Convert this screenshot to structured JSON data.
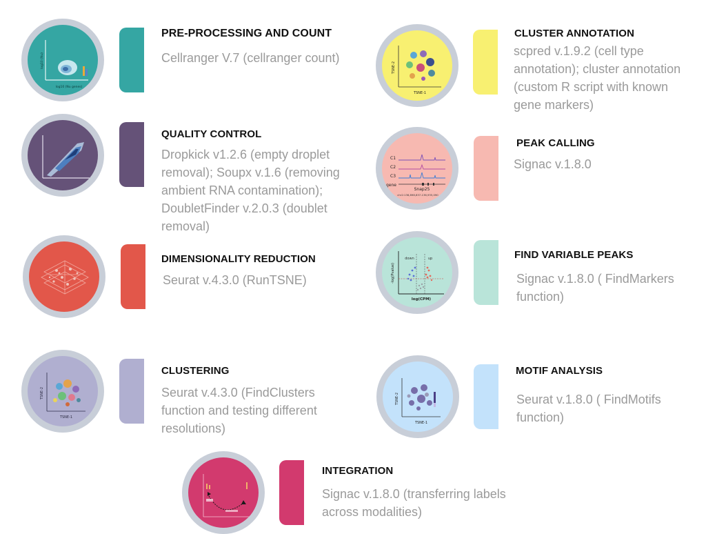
{
  "steps": [
    {
      "title": "PRE-PROCESSING AND COUNT",
      "description": "Cellranger V.7 (cellranger count)",
      "color": "#35a6a3",
      "icon": "density-plot-icon",
      "icon_labels": {
        "xlabel": "log10 (Nu genes)",
        "ylabel": "log10 (Nu)"
      }
    },
    {
      "title": "QUALITY CONTROL",
      "description": "Dropkick v1.2.6 (empty droplet removal); Soupx v.1.6 (removing ambient RNA contamination); DoubletFinder v.2.0.3 (doublet removal)",
      "color": "#655278",
      "icon": "scatter-density-icon"
    },
    {
      "title": "DIMENSIONALITY REDUCTION",
      "description": "Seurat v.4.3.0 (RunTSNE)",
      "color": "#e2574a",
      "icon": "3d-reduction-icon"
    },
    {
      "title": "CLUSTERING",
      "description": "Seurat v.4.3.0 (FindClusters function and testing different resolutions)",
      "color": "#b0afd0",
      "icon": "tsne-cluster-icon",
      "icon_labels": {
        "xlabel": "TSNE-1",
        "ylabel": "TSNE-2"
      }
    },
    {
      "title": "CLUSTER ANNOTATION",
      "description": "scpred v.1.9.2 (cell type annotation); cluster annotation (custom R script with known gene markers)",
      "color": "#f8f071",
      "icon": "annotated-tsne-icon",
      "icon_labels": {
        "xlabel": "TSNE-1",
        "ylabel": "TSNE-2"
      }
    },
    {
      "title": "PEAK CALLING",
      "description": "Signac v.1.8.0",
      "color": "#f7b9b1",
      "icon": "peak-track-icon",
      "icon_labels": {
        "tracks": [
          "C1",
          "C2",
          "C3"
        ],
        "gene_row": "gene",
        "gene_name": "Snap25",
        "locus": "chr2:136,898,837-136,935,090"
      }
    },
    {
      "title": "FIND VARIABLE PEAKS",
      "description": "Signac v.1.8.0 ( FindMarkers function)",
      "color": "#b9e4d9",
      "icon": "volcano-plot-icon",
      "icon_labels": {
        "xlabel": "log(CPM)",
        "ylabel": "-log(Pvalue)",
        "down": "down",
        "up": "up"
      }
    },
    {
      "title": "MOTIF ANALYSIS",
      "description": "Seurat v.1.8.0 ( FindMotifs function)",
      "color": "#c3e2fb",
      "icon": "motif-tsne-icon",
      "icon_labels": {
        "xlabel": "TSNE-1",
        "ylabel": "TSNE-2"
      }
    },
    {
      "title": "INTEGRATION",
      "description": "Signac v.1.8.0 (transferring labels across modalities)",
      "color": "#d23a6e",
      "icon": "integration-icon"
    }
  ]
}
